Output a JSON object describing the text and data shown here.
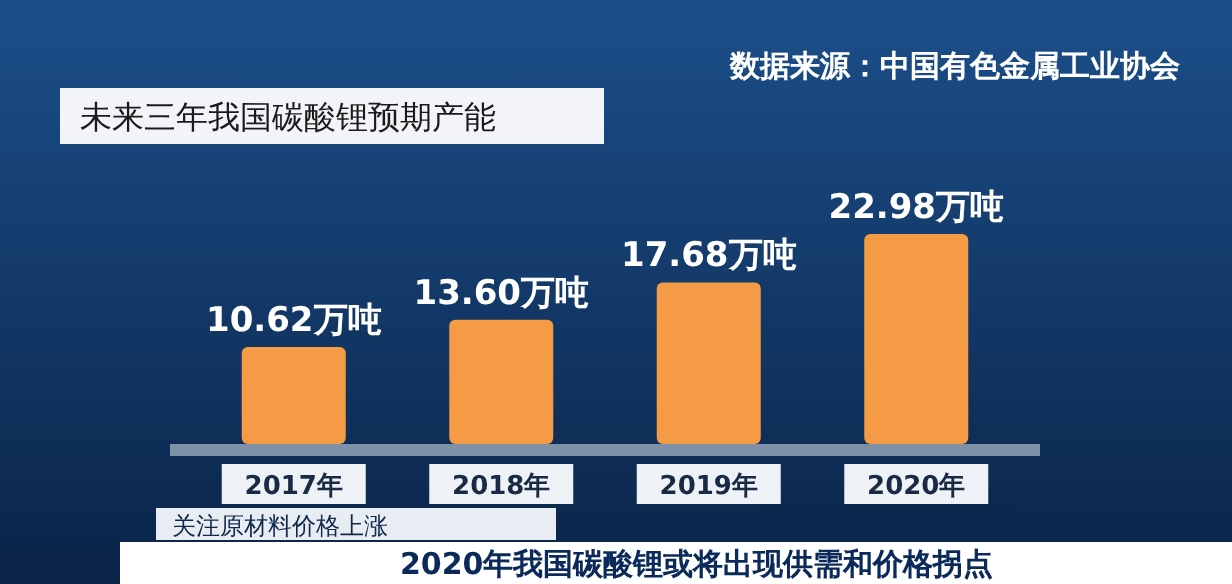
{
  "chart_data": {
    "type": "bar",
    "title": "未来三年我国碳酸锂预期产能",
    "categories": [
      "2017年",
      "2018年",
      "2019年",
      "2020年"
    ],
    "values": [
      10.62,
      13.6,
      17.68,
      22.98
    ],
    "value_labels": [
      "10.62万吨",
      "13.60万吨",
      "17.68万吨",
      "22.98万吨"
    ],
    "color": "#f59a45",
    "annotations": [
      "数据来源：中国有色金属工业协会",
      "关注原材料价格上涨",
      "2020年我国碳酸锂或将出现供需和价格拐点"
    ]
  }
}
